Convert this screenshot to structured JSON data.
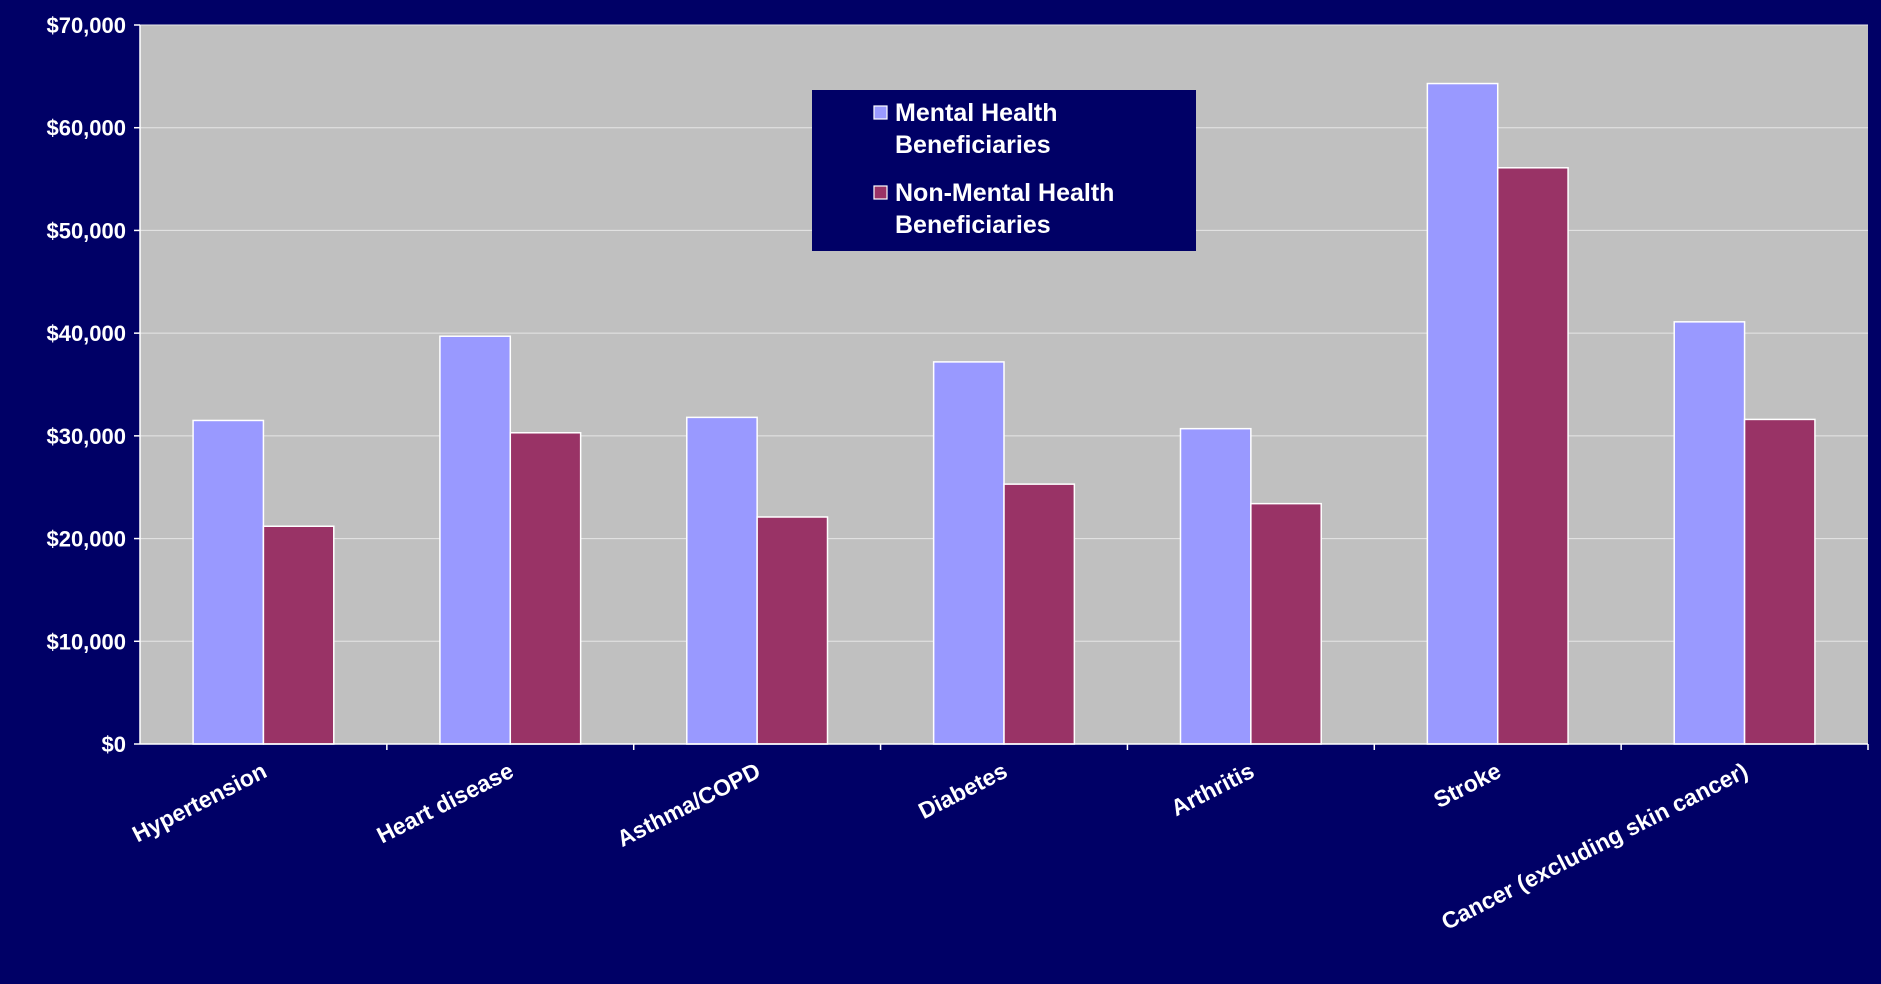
{
  "colors": {
    "background": "#000066",
    "plot_area": "#c0c0c0",
    "gridline": "#e6e6e6",
    "series_1": "#9999ff",
    "series_2": "#993366",
    "bar_border": "#ffffff",
    "text": "#ffffff"
  },
  "chart_data": {
    "type": "bar",
    "title": "",
    "xlabel": "",
    "ylabel": "",
    "grid": "horizontal",
    "legend_position": "top-center",
    "ylim": [
      0,
      70000
    ],
    "y_ticks": [
      0,
      10000,
      20000,
      30000,
      40000,
      50000,
      60000,
      70000
    ],
    "y_tick_labels": [
      "$0",
      "$10,000",
      "$20,000",
      "$30,000",
      "$40,000",
      "$50,000",
      "$60,000",
      "$70,000"
    ],
    "categories": [
      "Hypertension",
      "Heart disease",
      "Asthma/COPD",
      "Diabetes",
      "Arthritis",
      "Stroke",
      "Cancer (excluding skin cancer)"
    ],
    "series": [
      {
        "name": "Mental Health Beneficiaries",
        "legend_lines": [
          "Mental Health",
          "Beneficiaries"
        ],
        "values": [
          31500,
          39700,
          31800,
          37200,
          30700,
          64300,
          41100
        ]
      },
      {
        "name": "Non-Mental Health Beneficiaries",
        "legend_lines": [
          "Non-Mental Health",
          "Beneficiaries"
        ],
        "values": [
          21200,
          30300,
          22100,
          25300,
          23400,
          56100,
          31600
        ]
      }
    ]
  }
}
